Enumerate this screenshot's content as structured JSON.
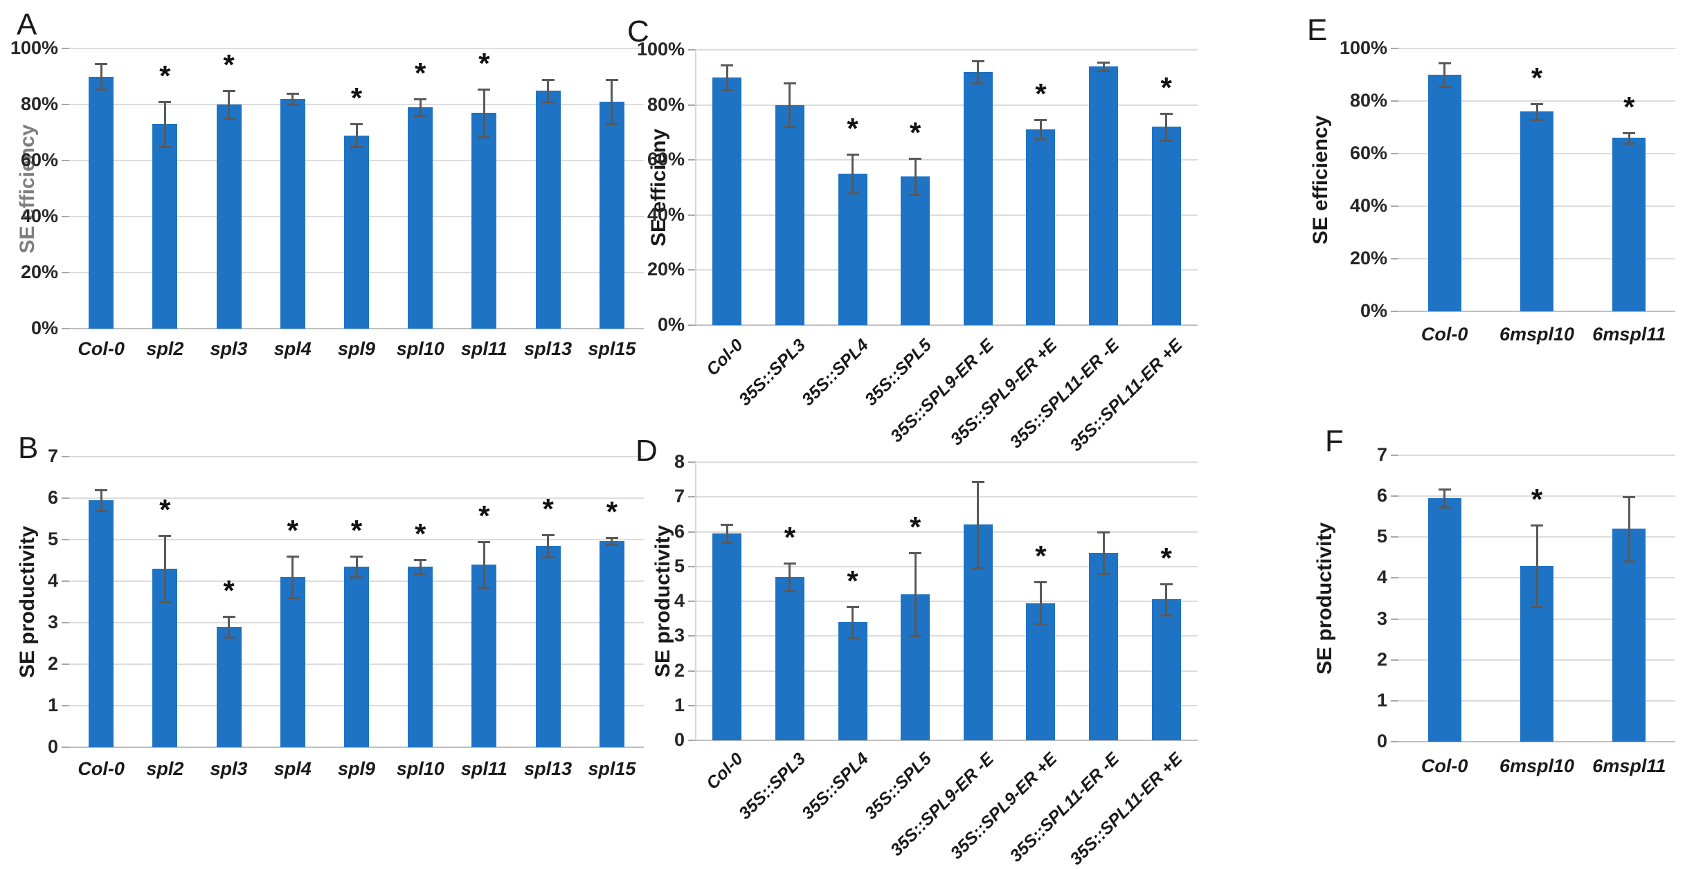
{
  "sig_marker": "*",
  "colors": {
    "bar": "#1e73c5",
    "error_bar": "#595959",
    "gridline": "#dcdcdc",
    "baseline": "#bfbfbf",
    "tick_text": "#262626",
    "label_text": "#1a1a1a",
    "panel_a_ylabel": "#7f7f7f"
  },
  "chart_data": [
    {
      "panel_label": "A",
      "type": "bar",
      "ylabel": "SE efficiency",
      "ylabel_color": "#7f7f7f",
      "yticks": [
        "0%",
        "20%",
        "40%",
        "60%",
        "80%",
        "100%"
      ],
      "ylim": [
        0,
        100
      ],
      "ytick_step": 20,
      "xlabel_rotation": 0,
      "categories": [
        "Col-0",
        "spl2",
        "spl3",
        "spl4",
        "spl9",
        "spl10",
        "spl11",
        "spl13",
        "spl15"
      ],
      "values": [
        90,
        73,
        80,
        82,
        69,
        79,
        77,
        85,
        81
      ],
      "errors": [
        4.5,
        8,
        5,
        2,
        4,
        3,
        8.5,
        4,
        8
      ],
      "significant": [
        false,
        true,
        true,
        false,
        true,
        true,
        true,
        false,
        false
      ]
    },
    {
      "panel_label": "B",
      "type": "bar",
      "ylabel": "SE productivity",
      "ylabel_color": "#1a1a1a",
      "yticks": [
        "0",
        "1",
        "2",
        "3",
        "4",
        "5",
        "6",
        "7"
      ],
      "ylim": [
        0,
        7
      ],
      "ytick_step": 1,
      "xlabel_rotation": 0,
      "categories": [
        "Col-0",
        "spl2",
        "spl3",
        "spl4",
        "spl9",
        "spl10",
        "spl11",
        "spl13",
        "spl15"
      ],
      "values": [
        5.95,
        4.3,
        2.9,
        4.1,
        4.35,
        4.35,
        4.4,
        4.85,
        4.97
      ],
      "errors": [
        0.25,
        0.8,
        0.25,
        0.5,
        0.25,
        0.17,
        0.55,
        0.27,
        0.08
      ],
      "significant": [
        false,
        true,
        true,
        true,
        true,
        true,
        true,
        true,
        true
      ]
    },
    {
      "panel_label": "C",
      "type": "bar",
      "ylabel": "SE efficieny",
      "ylabel_color": "#1a1a1a",
      "yticks": [
        "0%",
        "20%",
        "40%",
        "60%",
        "80%",
        "100%"
      ],
      "ylim": [
        0,
        100
      ],
      "ytick_step": 20,
      "xlabel_rotation": 45,
      "categories": [
        "Col-0",
        "35S::SPL3",
        "35S::SPL4",
        "35S::SPL5",
        "35S::SPL9-ER -E",
        "35S::SPL9-ER +E",
        "35S::SPL11-ER -E",
        "35S::SPL11-ER +E"
      ],
      "values": [
        90,
        80,
        55,
        54,
        92,
        71,
        94,
        72
      ],
      "errors": [
        4.5,
        8,
        7,
        6.5,
        4,
        3.5,
        1.5,
        5
      ],
      "significant": [
        false,
        false,
        true,
        true,
        false,
        true,
        false,
        true
      ]
    },
    {
      "panel_label": "D",
      "type": "bar",
      "ylabel": "SE productivity",
      "ylabel_color": "#1a1a1a",
      "yticks": [
        "0",
        "1",
        "2",
        "3",
        "4",
        "5",
        "6",
        "7",
        "8"
      ],
      "ylim": [
        0,
        8
      ],
      "ytick_step": 1,
      "xlabel_rotation": 45,
      "categories": [
        "Col-0",
        "35S::SPL3",
        "35S::SPL4",
        "35S::SPL5",
        "35S::SPL9-ER -E",
        "35S::SPL9-ER +E",
        "35S::SPL11-ER -E",
        "35S::SPL11-ER +E"
      ],
      "values": [
        5.95,
        4.7,
        3.4,
        4.2,
        6.2,
        3.95,
        5.4,
        4.05
      ],
      "errors": [
        0.25,
        0.4,
        0.45,
        1.2,
        1.25,
        0.6,
        0.6,
        0.45
      ],
      "significant": [
        false,
        true,
        true,
        true,
        false,
        true,
        false,
        true
      ]
    },
    {
      "panel_label": "E",
      "type": "bar",
      "ylabel": "SE efficiency",
      "ylabel_color": "#1a1a1a",
      "yticks": [
        "0%",
        "20%",
        "40%",
        "60%",
        "80%",
        "100%"
      ],
      "ylim": [
        0,
        100
      ],
      "ytick_step": 20,
      "xlabel_rotation": 0,
      "categories": [
        "Col-0",
        "6mspl10",
        "6mspl11"
      ],
      "values": [
        90,
        76,
        66
      ],
      "errors": [
        4.5,
        3,
        2
      ],
      "significant": [
        false,
        true,
        true
      ]
    },
    {
      "panel_label": "F",
      "type": "bar",
      "ylabel": "SE productivity",
      "ylabel_color": "#1a1a1a",
      "yticks": [
        "0",
        "1",
        "2",
        "3",
        "4",
        "5",
        "6",
        "7"
      ],
      "ylim": [
        0,
        7
      ],
      "ytick_step": 1,
      "xlabel_rotation": 0,
      "categories": [
        "Col-0",
        "6mspl10",
        "6mspl11"
      ],
      "values": [
        5.95,
        4.3,
        5.2
      ],
      "errors": [
        0.22,
        1.0,
        0.78
      ],
      "significant": [
        false,
        true,
        false
      ]
    }
  ]
}
